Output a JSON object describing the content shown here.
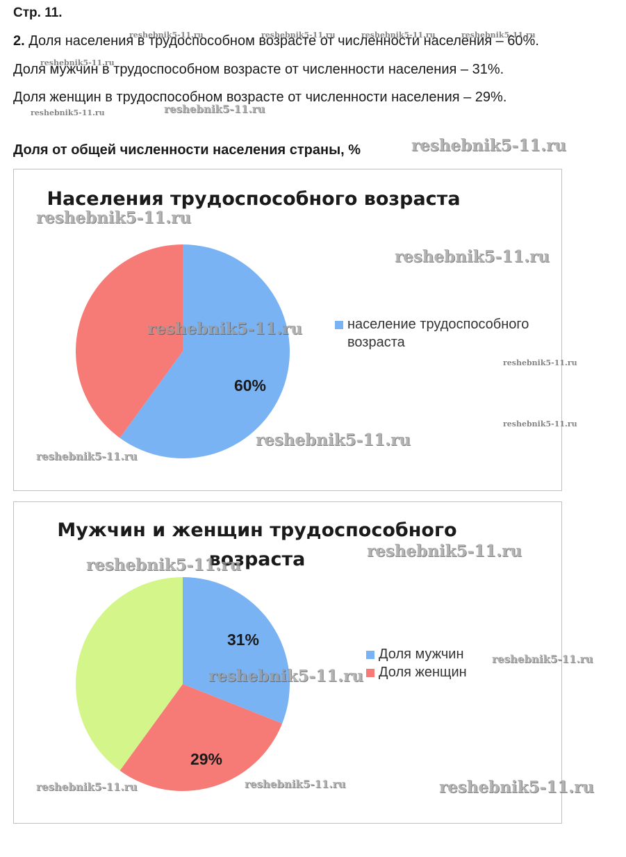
{
  "page_label": "Стр. 11.",
  "task": {
    "number": "2.",
    "line1": "Доля населения в трудоспособном возрасте от численности населения – 60%.",
    "line2": "Доля мужчин в трудоспособном возрасте от численности населения – 31%.",
    "line3": "Доля женщин в трудоспособном возрасте от численности населения – 29%."
  },
  "section_title": "Доля от общей численности населения страны, %",
  "watermark": "reshebnik5-11.ru",
  "colors": {
    "blue": "#7ab3f3",
    "red": "#f67b77",
    "green": "#d4f58a"
  },
  "chart_data": [
    {
      "type": "pie",
      "title": "Населения трудоспособного возраста",
      "slices": [
        {
          "label": "население трудоспособного возраста",
          "value": 60,
          "data_label": "60%",
          "color": "#7ab3f3",
          "in_legend": true
        },
        {
          "label": "",
          "value": 40,
          "data_label": "",
          "color": "#f67b77",
          "in_legend": false
        }
      ],
      "legend_position": "right"
    },
    {
      "type": "pie",
      "title": "Мужчин и женщин трудоспособного возраста",
      "slices": [
        {
          "label": "Доля мужчин",
          "value": 31,
          "data_label": "31%",
          "color": "#7ab3f3",
          "in_legend": true
        },
        {
          "label": "Доля женщин",
          "value": 29,
          "data_label": "29%",
          "color": "#f67b77",
          "in_legend": true
        },
        {
          "label": "",
          "value": 40,
          "data_label": "",
          "color": "#d4f58a",
          "in_legend": false
        }
      ],
      "legend_position": "right"
    }
  ]
}
